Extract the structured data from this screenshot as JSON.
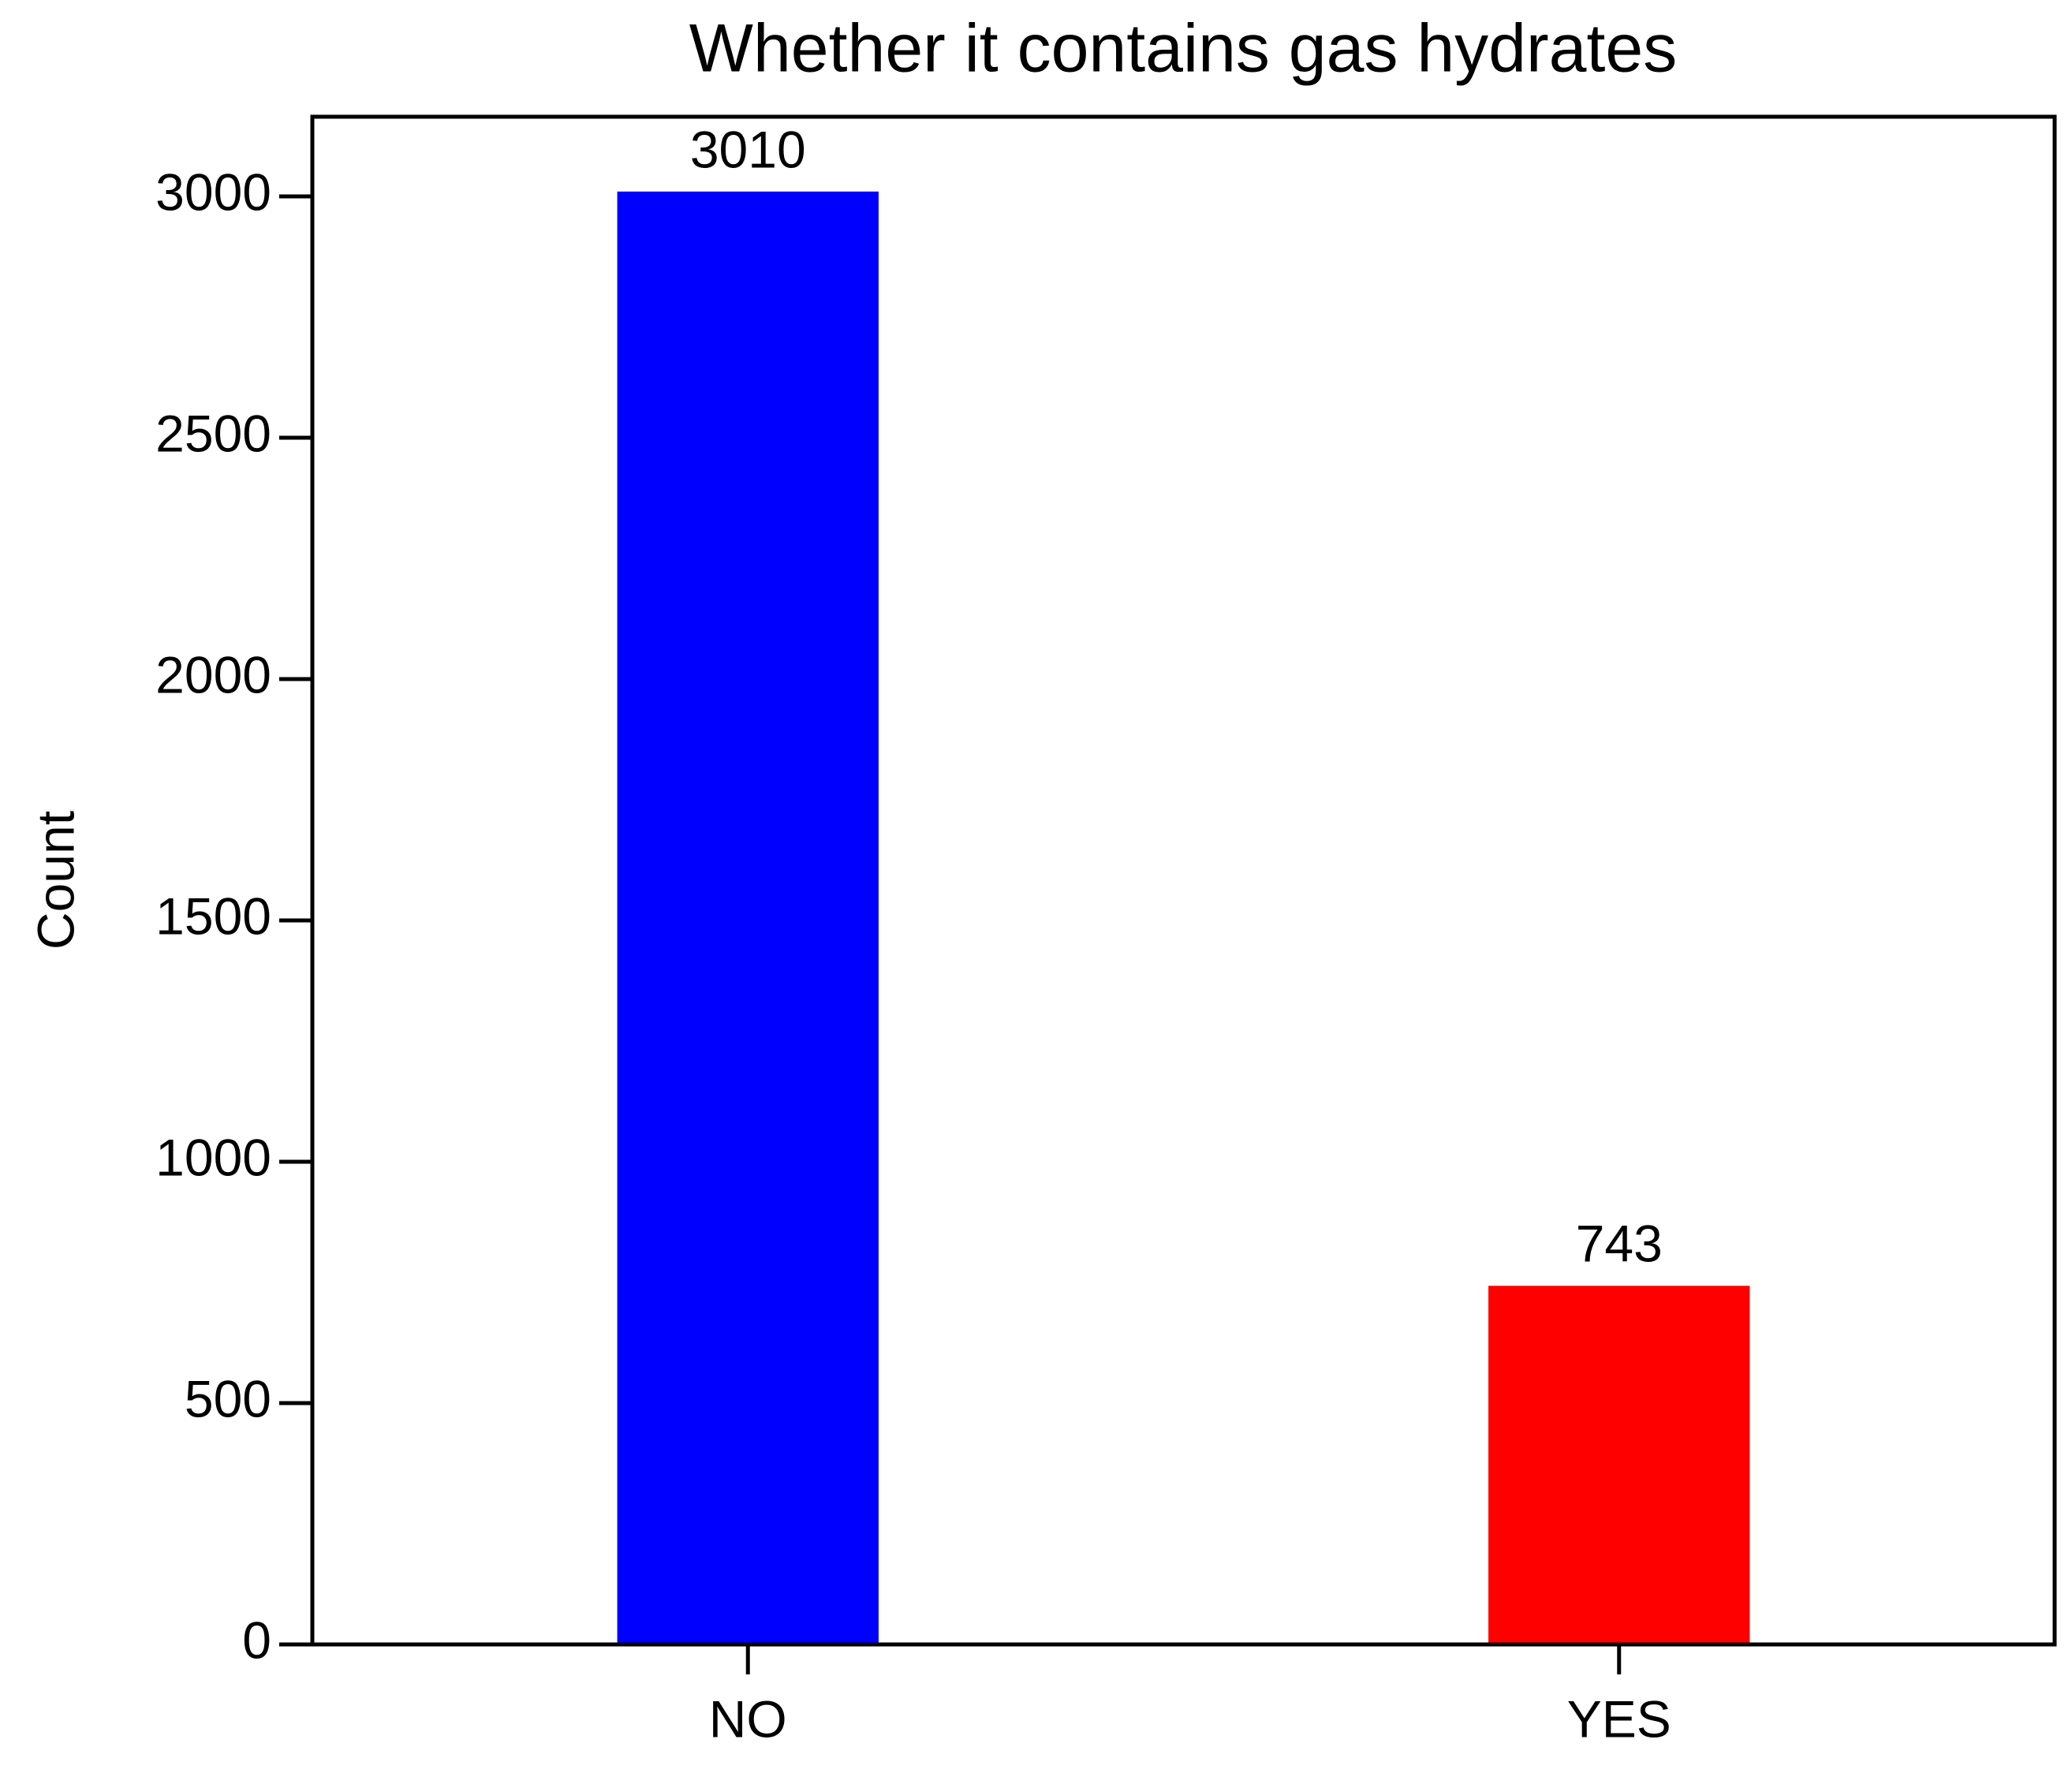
{
  "chart_data": {
    "type": "bar",
    "title": "Whether it contains gas hydrates",
    "ylabel": "Count",
    "categories": [
      "NO",
      "YES"
    ],
    "values": [
      3010,
      743
    ],
    "colors": [
      "#0000ff",
      "#ff0000"
    ],
    "ylim": [
      0,
      3165
    ],
    "yticks": [
      0,
      500,
      1000,
      1500,
      2000,
      2500,
      3000
    ],
    "grid": false
  }
}
